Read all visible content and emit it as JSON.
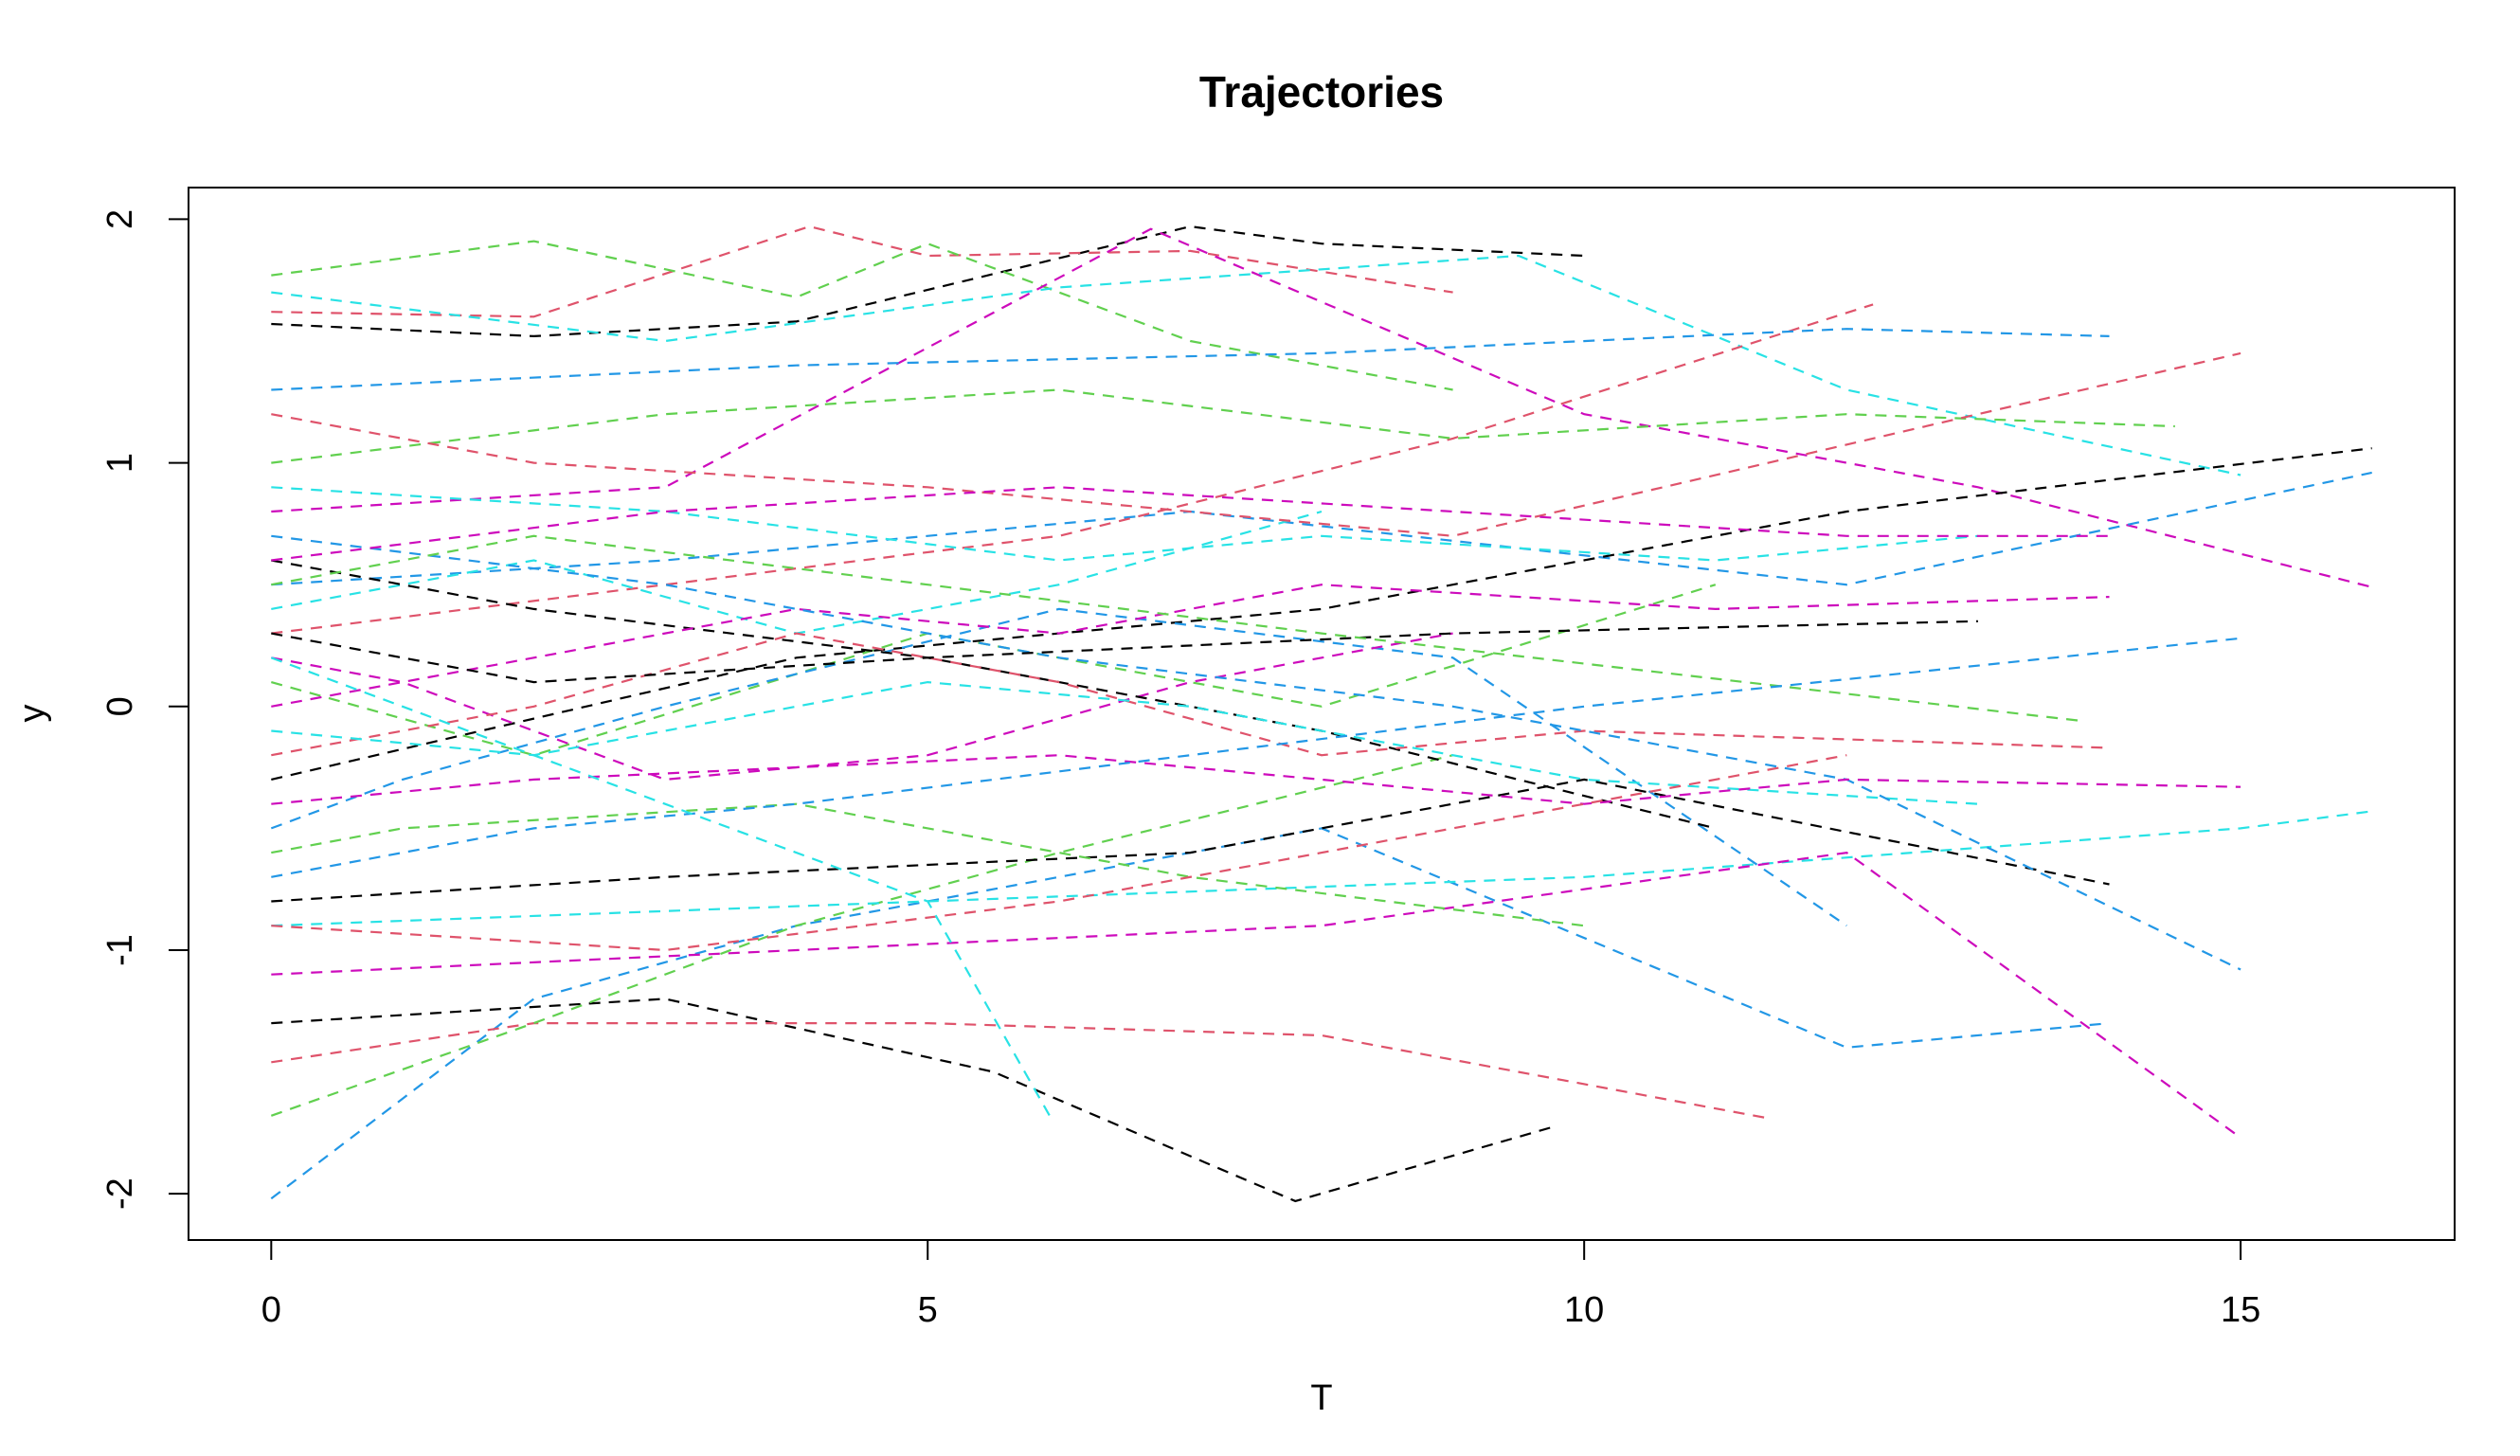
{
  "chart_data": {
    "type": "line",
    "title": "Trajectories",
    "x_label": "T",
    "y_label": "y",
    "xlim": [
      -0.63,
      16.63
    ],
    "ylim": [
      -2.19,
      2.13
    ],
    "xticks": [
      0,
      5,
      10,
      15
    ],
    "yticks": [
      -2,
      -1,
      0,
      1,
      2
    ],
    "line_style": "dashed",
    "grid": false,
    "series": [
      {
        "color": "#000000",
        "x": [
          0,
          2,
          4,
          7,
          8,
          10
        ],
        "values": [
          1.57,
          1.52,
          1.58,
          1.97,
          1.9,
          1.85
        ]
      },
      {
        "color": "#DF536B",
        "x": [
          0,
          2,
          4.1,
          5,
          7,
          9
        ],
        "values": [
          1.62,
          1.6,
          1.97,
          1.85,
          1.87,
          1.7
        ]
      },
      {
        "color": "#61D04F",
        "x": [
          0,
          2,
          4,
          5,
          7,
          9
        ],
        "values": [
          1.77,
          1.91,
          1.68,
          1.9,
          1.5,
          1.3
        ]
      },
      {
        "color": "#2297E6",
        "x": [
          0,
          2,
          4,
          8,
          12,
          14
        ],
        "values": [
          -2.02,
          -1.2,
          -0.9,
          -0.5,
          -1.4,
          -1.3
        ]
      },
      {
        "color": "#28E2E5",
        "x": [
          0,
          3,
          6,
          9.5,
          12,
          15
        ],
        "values": [
          1.7,
          1.5,
          1.72,
          1.85,
          1.3,
          0.95
        ]
      },
      {
        "color": "#CD0BBC",
        "x": [
          0,
          3,
          6.7,
          10,
          13,
          16
        ],
        "values": [
          0.8,
          0.9,
          1.96,
          1.2,
          0.9,
          0.49
        ]
      },
      {
        "color": "#000000",
        "x": [
          0,
          3,
          5.5,
          7.8,
          9.8
        ],
        "values": [
          -1.3,
          -1.2,
          -1.5,
          -2.03,
          -1.72
        ]
      },
      {
        "color": "#DF536B",
        "x": [
          0,
          2,
          5,
          8,
          11.4
        ],
        "values": [
          -1.46,
          -1.3,
          -1.3,
          -1.35,
          -1.69
        ]
      },
      {
        "color": "#61D04F",
        "x": [
          0,
          2,
          4,
          6,
          9
        ],
        "values": [
          -1.68,
          -1.3,
          -0.9,
          -0.6,
          -0.2
        ]
      },
      {
        "color": "#2297E6",
        "x": [
          0,
          3,
          7,
          12,
          16
        ],
        "values": [
          0.5,
          0.6,
          0.8,
          0.5,
          0.96
        ]
      },
      {
        "color": "#28E2E5",
        "x": [
          0,
          5,
          10,
          15,
          16
        ],
        "values": [
          -0.9,
          -0.8,
          -0.7,
          -0.5,
          -0.43
        ]
      },
      {
        "color": "#CD0BBC",
        "x": [
          0,
          4,
          8,
          12,
          15
        ],
        "values": [
          -1.1,
          -1.0,
          -0.9,
          -0.6,
          -1.77
        ]
      },
      {
        "color": "#000000",
        "x": [
          0,
          4,
          8,
          12,
          16
        ],
        "values": [
          -0.3,
          0.2,
          0.4,
          0.8,
          1.06
        ]
      },
      {
        "color": "#DF536B",
        "x": [
          0,
          3,
          6,
          9,
          12.2
        ],
        "values": [
          0.3,
          0.5,
          0.7,
          1.1,
          1.65
        ]
      },
      {
        "color": "#61D04F",
        "x": [
          0,
          2,
          5,
          8,
          11
        ],
        "values": [
          0.1,
          -0.2,
          0.3,
          0.0,
          0.5
        ]
      },
      {
        "color": "#2297E6",
        "x": [
          0,
          1,
          3,
          6,
          9,
          12
        ],
        "values": [
          -0.5,
          -0.3,
          0.0,
          0.4,
          0.2,
          -0.9
        ]
      },
      {
        "color": "#28E2E5",
        "x": [
          0,
          2,
          4,
          6,
          8
        ],
        "values": [
          0.4,
          0.6,
          0.3,
          0.5,
          0.8
        ]
      },
      {
        "color": "#CD0BBC",
        "x": [
          0,
          1,
          3,
          5,
          7,
          9
        ],
        "values": [
          0.2,
          0.1,
          -0.3,
          -0.2,
          0.1,
          0.3
        ]
      },
      {
        "color": "#000000",
        "x": [
          0,
          2,
          5,
          8,
          11
        ],
        "values": [
          0.6,
          0.4,
          0.2,
          -0.1,
          -0.5
        ]
      },
      {
        "color": "#DF536B",
        "x": [
          0,
          2,
          4,
          6,
          8,
          10,
          14
        ],
        "values": [
          -0.2,
          0,
          0.3,
          0.1,
          -0.2,
          -0.1,
          -0.17
        ]
      },
      {
        "color": "#61D04F",
        "x": [
          0,
          3,
          6,
          9,
          12,
          14.5
        ],
        "values": [
          1.0,
          1.2,
          1.3,
          1.1,
          1.2,
          1.15
        ]
      },
      {
        "color": "#2297E6",
        "x": [
          0,
          4,
          8,
          12,
          14
        ],
        "values": [
          1.3,
          1.4,
          1.45,
          1.55,
          1.52
        ]
      },
      {
        "color": "#28E2E5",
        "x": [
          0,
          2,
          5,
          7,
          10,
          13
        ],
        "values": [
          -0.1,
          -0.2,
          0.1,
          0.0,
          -0.3,
          -0.4
        ]
      },
      {
        "color": "#CD0BBC",
        "x": [
          0,
          2,
          4,
          6,
          8,
          11,
          14
        ],
        "values": [
          0.0,
          0.2,
          0.4,
          0.3,
          0.5,
          0.4,
          0.45
        ]
      },
      {
        "color": "#000000",
        "x": [
          0,
          3,
          7,
          10,
          14
        ],
        "values": [
          -0.8,
          -0.7,
          -0.6,
          -0.3,
          -0.73
        ]
      },
      {
        "color": "#DF536B",
        "x": [
          0,
          2,
          5,
          9,
          15
        ],
        "values": [
          1.2,
          1.0,
          0.9,
          0.7,
          1.45
        ]
      },
      {
        "color": "#61D04F",
        "x": [
          0,
          1,
          4,
          7,
          10
        ],
        "values": [
          -0.6,
          -0.5,
          -0.4,
          -0.7,
          -0.9
        ]
      },
      {
        "color": "#2297E6",
        "x": [
          0,
          3,
          6,
          9,
          12,
          15
        ],
        "values": [
          0.7,
          0.5,
          0.2,
          0.0,
          -0.3,
          -1.08
        ]
      },
      {
        "color": "#28E2E5",
        "x": [
          0,
          3,
          6,
          8,
          11,
          13
        ],
        "values": [
          0.9,
          0.8,
          0.6,
          0.7,
          0.6,
          0.7
        ]
      },
      {
        "color": "#CD0BBC",
        "x": [
          0,
          2,
          6,
          10,
          12,
          15
        ],
        "values": [
          -0.4,
          -0.3,
          -0.2,
          -0.4,
          -0.3,
          -0.33
        ]
      },
      {
        "color": "#000000",
        "x": [
          0,
          2,
          5,
          9,
          13
        ],
        "values": [
          0.3,
          0.1,
          0.2,
          0.3,
          0.35
        ]
      },
      {
        "color": "#DF536B",
        "x": [
          0,
          3,
          6,
          9,
          12
        ],
        "values": [
          -0.9,
          -1.0,
          -0.8,
          -0.5,
          -0.2
        ]
      },
      {
        "color": "#61D04F",
        "x": [
          0,
          2,
          5,
          8,
          13.8
        ],
        "values": [
          0.5,
          0.7,
          0.5,
          0.3,
          -0.06
        ]
      },
      {
        "color": "#2297E6",
        "x": [
          0,
          2,
          4,
          7,
          10,
          15
        ],
        "values": [
          -0.7,
          -0.5,
          -0.4,
          -0.2,
          0.0,
          0.28
        ]
      },
      {
        "color": "#28E2E5",
        "x": [
          0,
          1,
          3,
          5,
          5.95
        ],
        "values": [
          0.2,
          0.0,
          -0.4,
          -0.8,
          -1.7
        ]
      },
      {
        "color": "#CD0BBC",
        "x": [
          0,
          3,
          6,
          9,
          12,
          14
        ],
        "values": [
          0.6,
          0.8,
          0.9,
          0.8,
          0.7,
          0.7
        ]
      }
    ]
  }
}
